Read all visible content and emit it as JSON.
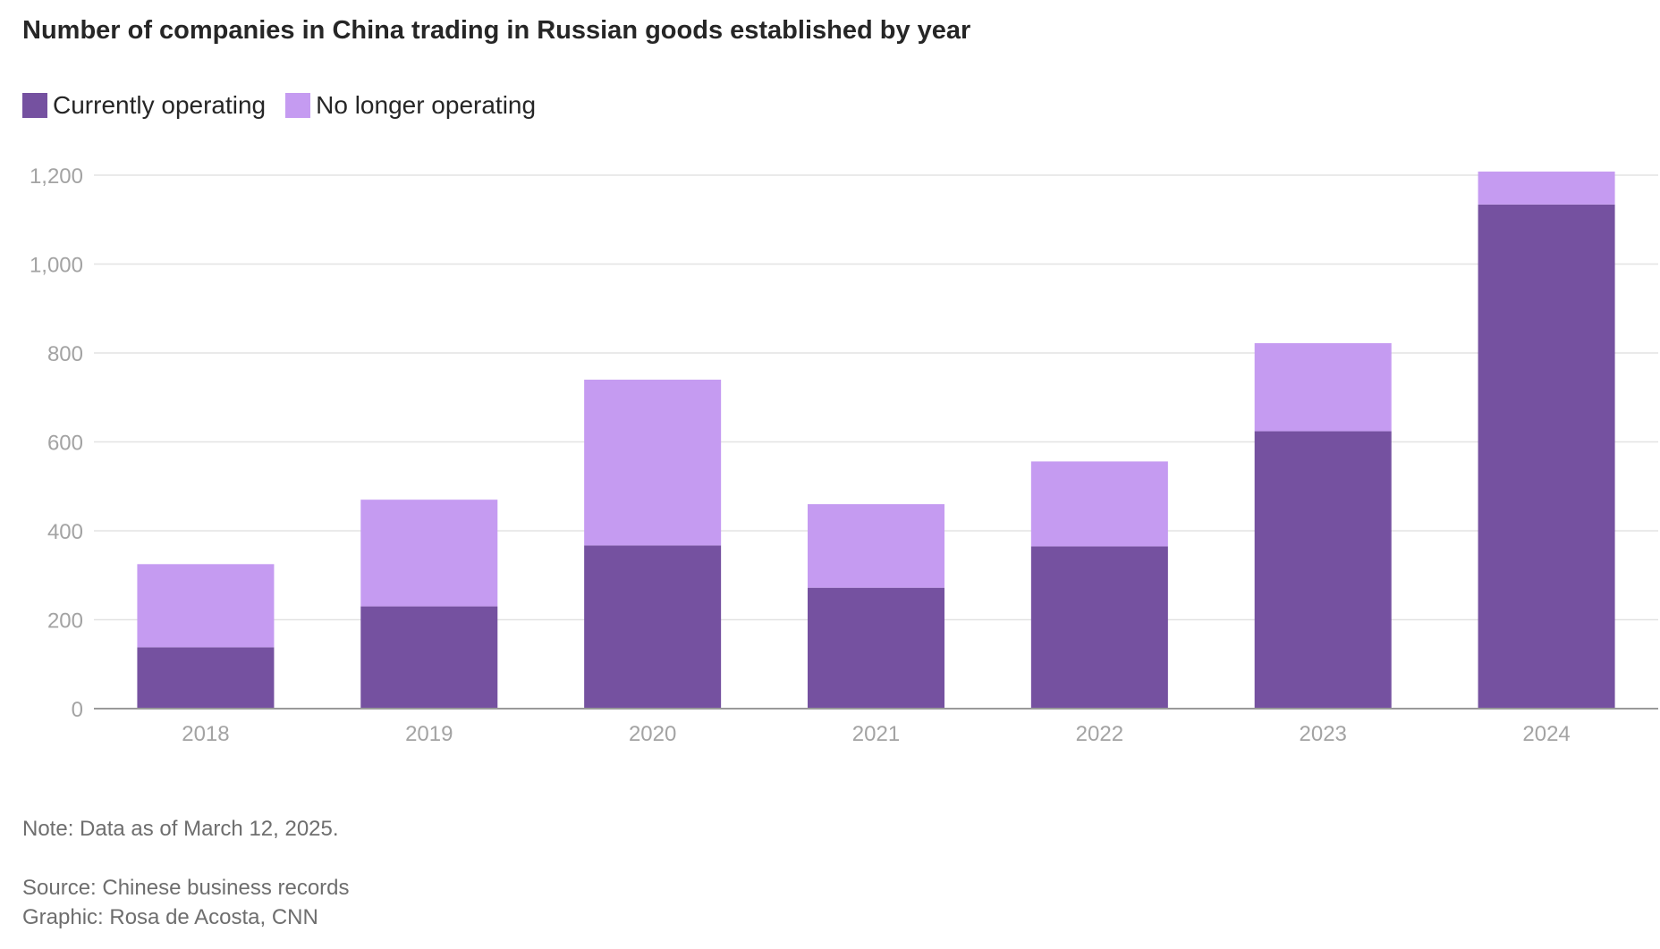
{
  "title": "Number of companies in China trading in Russian goods established by year",
  "legend": [
    {
      "label": "Currently operating",
      "color": "#7551a0"
    },
    {
      "label": "No longer operating",
      "color": "#c59bf1"
    }
  ],
  "footer": {
    "note": "Note: Data as of March 12, 2025.",
    "source": "Source: Chinese business records",
    "credit": "Graphic: Rosa de Acosta, CNN"
  },
  "chart_data": {
    "type": "bar",
    "stacked": true,
    "categories": [
      "2018",
      "2019",
      "2020",
      "2021",
      "2022",
      "2023",
      "2024"
    ],
    "series": [
      {
        "name": "Currently operating",
        "color": "#7551a0",
        "values": [
          138,
          230,
          367,
          272,
          365,
          624,
          1134
        ]
      },
      {
        "name": "No longer operating",
        "color": "#c59bf1",
        "values": [
          187,
          240,
          373,
          188,
          191,
          198,
          74
        ]
      }
    ],
    "ylim": [
      0,
      1200
    ],
    "yticks": [
      0,
      200,
      400,
      600,
      800,
      1000,
      1200
    ],
    "ytick_labels": [
      "0",
      "200",
      "400",
      "600",
      "800",
      "1,000",
      "1,200"
    ],
    "grid": true,
    "legend_position": "top-left"
  }
}
